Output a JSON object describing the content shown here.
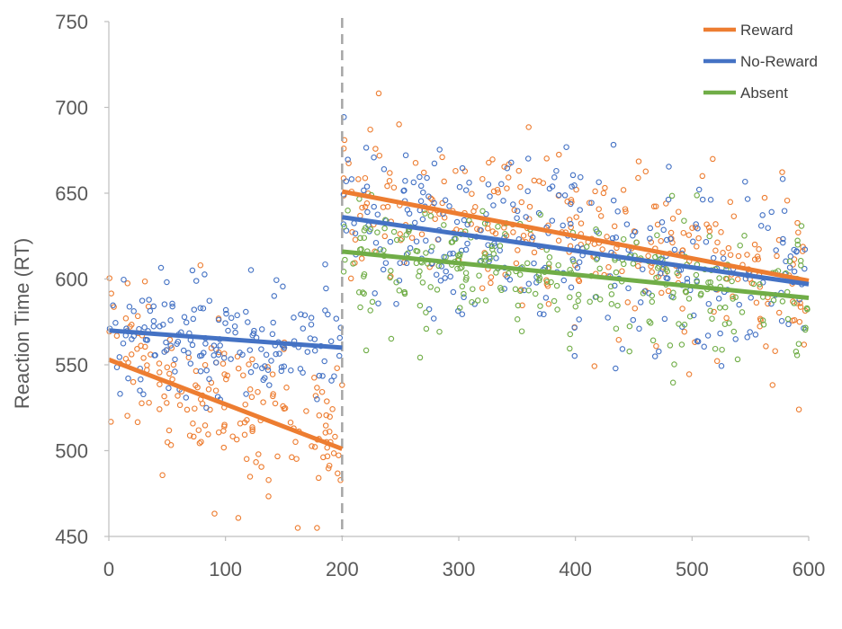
{
  "chart_data": {
    "type": "scatter",
    "title": "",
    "xlabel": "",
    "ylabel": "Reaction Time (RT)",
    "xlim": [
      0,
      600
    ],
    "ylim": [
      450,
      750
    ],
    "x_ticks": [
      0,
      100,
      200,
      300,
      400,
      500,
      600
    ],
    "y_ticks": [
      450,
      500,
      550,
      600,
      650,
      700,
      750
    ],
    "grid": false,
    "legend_position": "top-right",
    "divider_x": 200,
    "series": [
      {
        "name": "Reward",
        "color": "#ED7D31",
        "trend": [
          {
            "x": [
              0,
              200
            ],
            "y": [
              553,
              501
            ]
          },
          {
            "x": [
              200,
              600
            ],
            "y": [
              651,
              599
            ]
          }
        ],
        "phases": [
          {
            "x_range": [
              0,
              200
            ],
            "y_at_start": 553,
            "y_at_end": 501,
            "spread": 22,
            "count": 170
          },
          {
            "x_range": [
              200,
              600
            ],
            "y_at_start": 651,
            "y_at_end": 599,
            "spread": 24,
            "count": 300
          }
        ]
      },
      {
        "name": "No-Reward",
        "color": "#4472C4",
        "trend": [
          {
            "x": [
              0,
              200
            ],
            "y": [
              570,
              560
            ]
          },
          {
            "x": [
              200,
              600
            ],
            "y": [
              636,
              597
            ]
          }
        ],
        "phases": [
          {
            "x_range": [
              0,
              200
            ],
            "y_at_start": 570,
            "y_at_end": 560,
            "spread": 18,
            "count": 170
          },
          {
            "x_range": [
              200,
              600
            ],
            "y_at_start": 636,
            "y_at_end": 597,
            "spread": 24,
            "count": 300
          }
        ]
      },
      {
        "name": "Absent",
        "color": "#70AD47",
        "trend": [
          {
            "x": [
              200,
              600
            ],
            "y": [
              616,
              589
            ]
          }
        ],
        "phases": [
          {
            "x_range": [
              200,
              600
            ],
            "y_at_start": 616,
            "y_at_end": 589,
            "spread": 20,
            "count": 280
          }
        ]
      }
    ]
  }
}
